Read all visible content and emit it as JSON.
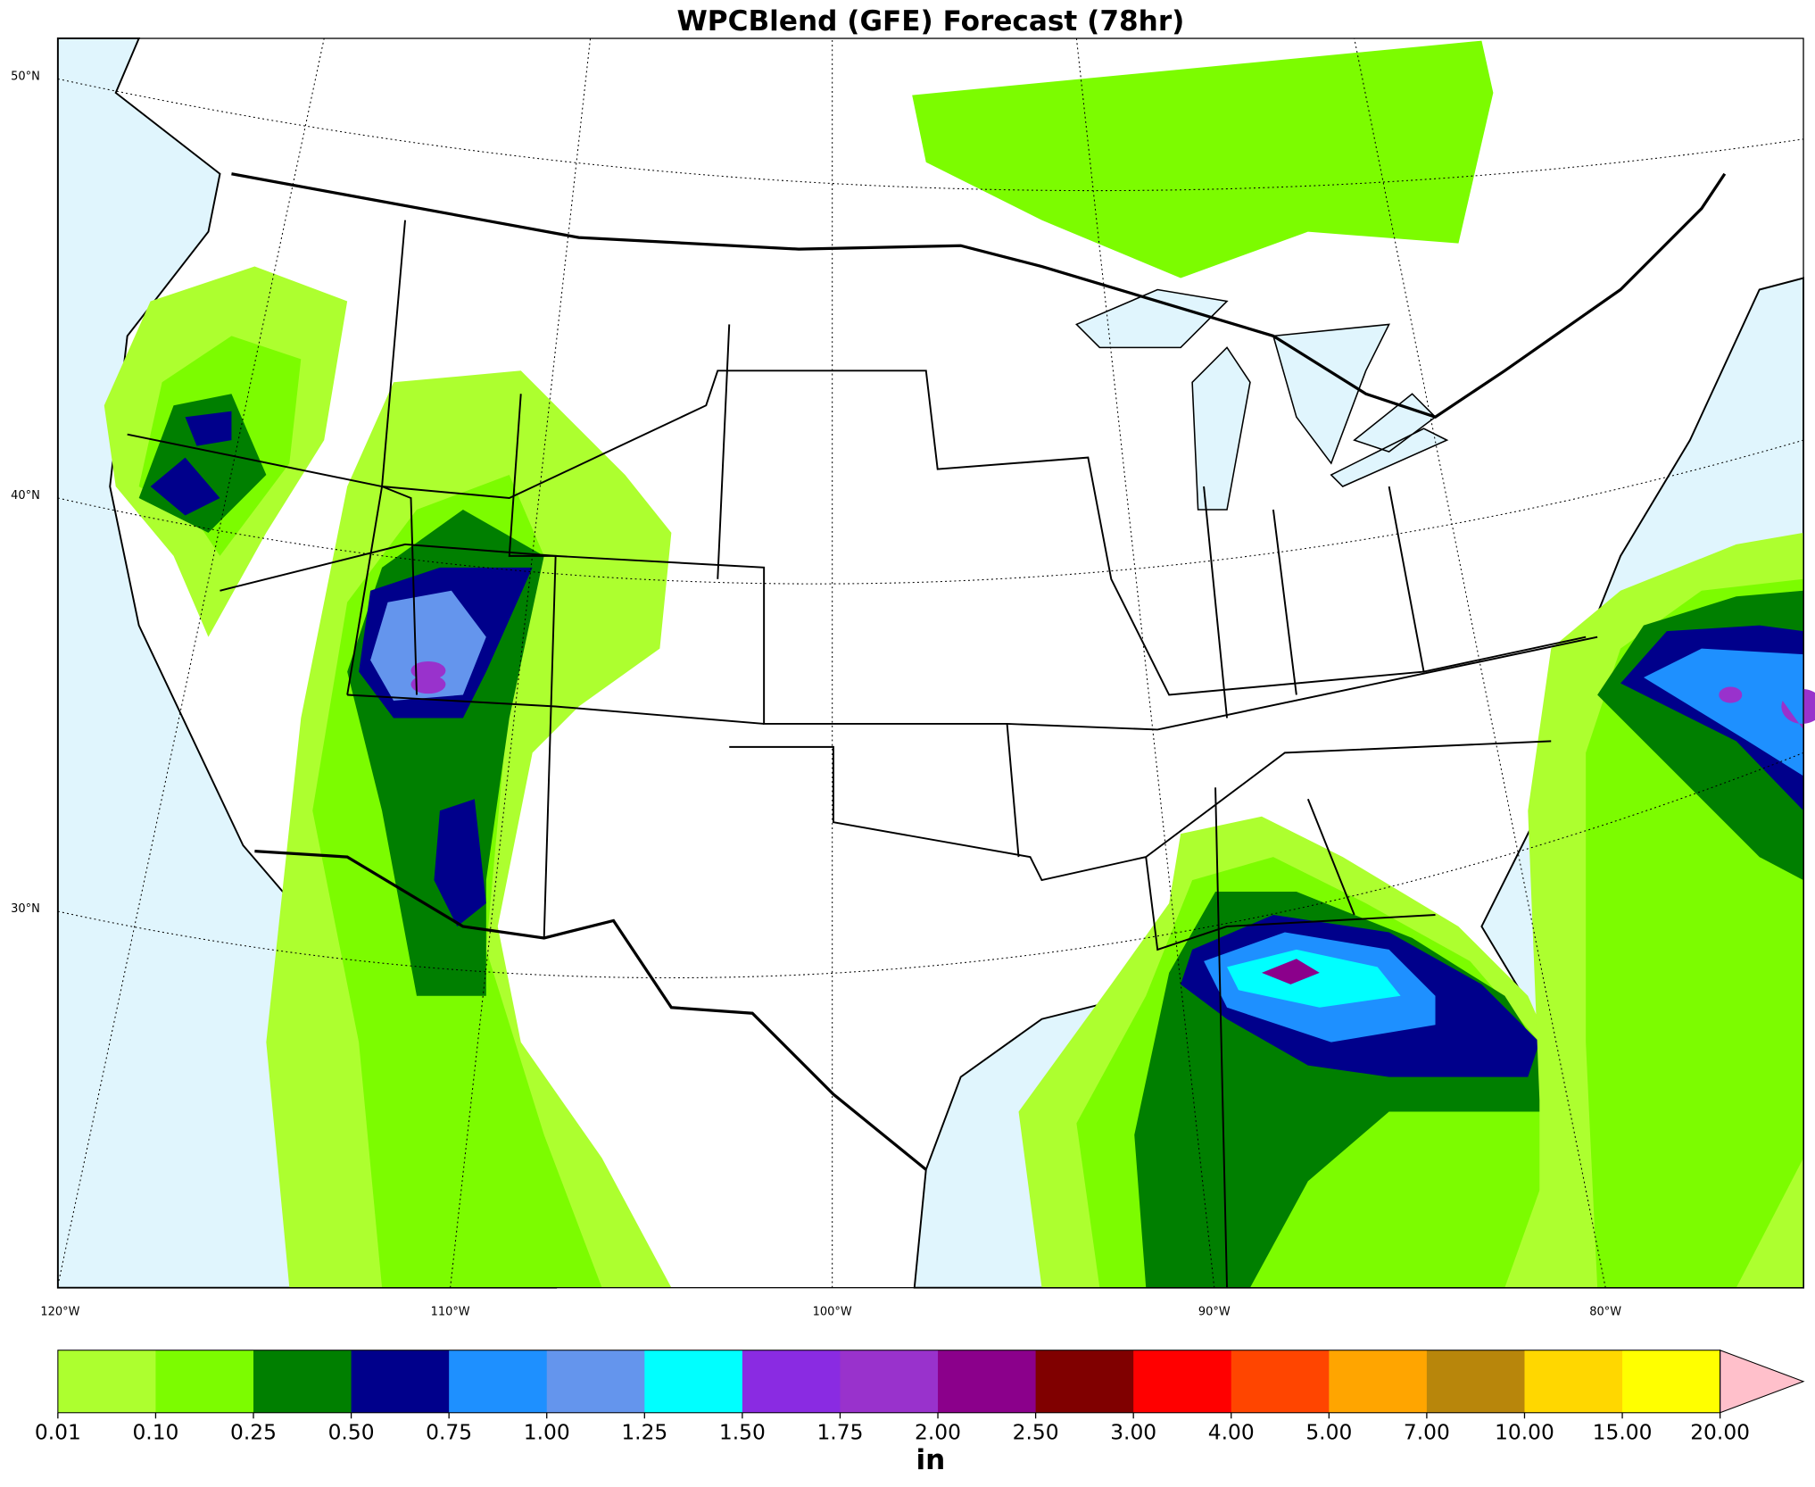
{
  "title": "WPCBlend (GFE) Forecast (78hr)",
  "lat_labels": [
    "50°N",
    "40°N",
    "30°N"
  ],
  "lon_labels": [
    "120°W",
    "110°W",
    "100°W",
    "90°W",
    "80°W"
  ],
  "colorbar": {
    "label": "in",
    "levels": [
      {
        "value": 0.01,
        "label": "0.01"
      },
      {
        "value": 0.1,
        "label": "0.10"
      },
      {
        "value": 0.25,
        "label": "0.25"
      },
      {
        "value": 0.5,
        "label": "0.50"
      },
      {
        "value": 0.75,
        "label": "0.75"
      },
      {
        "value": 1,
        "label": "1.00"
      },
      {
        "value": 1.25,
        "label": "1.25"
      },
      {
        "value": 1.5,
        "label": "1.50"
      },
      {
        "value": 1.75,
        "label": "1.75"
      },
      {
        "value": 2,
        "label": "2.00"
      },
      {
        "value": 2.5,
        "label": "2.50"
      },
      {
        "value": 3,
        "label": "3.00"
      },
      {
        "value": 4,
        "label": "4.00"
      },
      {
        "value": 5,
        "label": "5.00"
      },
      {
        "value": 7,
        "label": "7.00"
      },
      {
        "value": 10,
        "label": "10.00"
      },
      {
        "value": 15,
        "label": "15.00"
      },
      {
        "value": 20,
        "label": "20.00"
      }
    ],
    "colors": [
      "#adff2f",
      "#7cfc00",
      "#007f00",
      "#00008b",
      "#1e90ff",
      "#6495ed",
      "#00ffff",
      "#8a2be2",
      "#9932cc",
      "#8b008b",
      "#800000",
      "#ff0000",
      "#ff4500",
      "#ffa500",
      "#b8860b",
      "#ffd700",
      "#ffff00"
    ],
    "extend_color": "#ffc0cb"
  }
}
